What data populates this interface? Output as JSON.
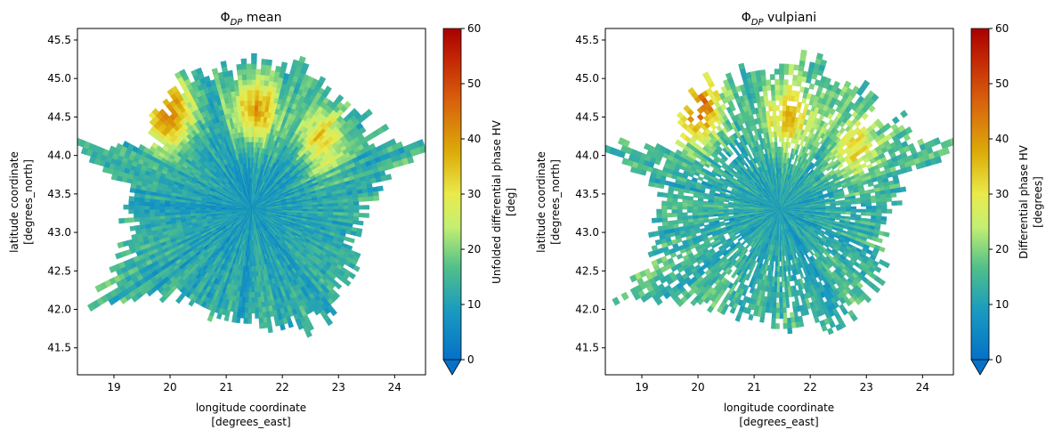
{
  "chart_data": [
    {
      "type": "heatmap",
      "title_symbol": "Φ",
      "title_sub": "DP",
      "title_rest": " mean",
      "xlabel_line1": "longitude coordinate",
      "xlabel_line2": "[degrees_east]",
      "ylabel_line1": "latitude coordinate",
      "ylabel_line2": "[degrees_north]",
      "xlim": [
        18.35,
        24.55
      ],
      "ylim": [
        41.15,
        45.65
      ],
      "xticks": [
        19,
        20,
        21,
        22,
        23,
        24
      ],
      "yticks": [
        41.5,
        42.0,
        42.5,
        43.0,
        43.5,
        44.0,
        44.5,
        45.0,
        45.5
      ],
      "colorbar": {
        "label_line1": "Unfolded differential phase HV",
        "label_line2": "[deg]",
        "range": [
          0,
          60
        ],
        "ticks": [
          0,
          10,
          20,
          30,
          40,
          50,
          60
        ],
        "extend": "min"
      },
      "field": {
        "center": [
          21.45,
          43.3
        ],
        "typical_value": 8,
        "high_region_nw": {
          "lon": 20.0,
          "lat": 44.55,
          "value": 38
        },
        "high_region_n": {
          "lon": 21.5,
          "lat": 44.6,
          "value": 35
        },
        "high_region_ne": {
          "lon": 22.7,
          "lat": 44.2,
          "value": 30
        },
        "filtered": false
      }
    },
    {
      "type": "heatmap",
      "title_symbol": "Φ",
      "title_sub": "DP",
      "title_rest": " vulpiani",
      "xlabel_line1": "longitude coordinate",
      "xlabel_line2": "[degrees_east]",
      "ylabel_line1": "latitude coordinate",
      "ylabel_line2": "[degrees_north]",
      "xlim": [
        18.35,
        24.55
      ],
      "ylim": [
        41.15,
        45.65
      ],
      "xticks": [
        19,
        20,
        21,
        22,
        23,
        24
      ],
      "yticks": [
        41.5,
        42.0,
        42.5,
        43.0,
        43.5,
        44.0,
        44.5,
        45.0,
        45.5
      ],
      "colorbar": {
        "label_line1": "Differential phase HV",
        "label_line2": "[degrees]",
        "range": [
          0,
          60
        ],
        "ticks": [
          0,
          10,
          20,
          30,
          40,
          50,
          60
        ],
        "extend": "min"
      },
      "field": {
        "center": [
          21.45,
          43.3
        ],
        "typical_value": 10,
        "high_region_nw": {
          "lon": 20.0,
          "lat": 44.6,
          "value": 40
        },
        "high_region_n": {
          "lon": 21.6,
          "lat": 44.5,
          "value": 32
        },
        "high_region_ne": {
          "lon": 22.8,
          "lat": 44.1,
          "value": 27
        },
        "filtered": true
      }
    }
  ]
}
